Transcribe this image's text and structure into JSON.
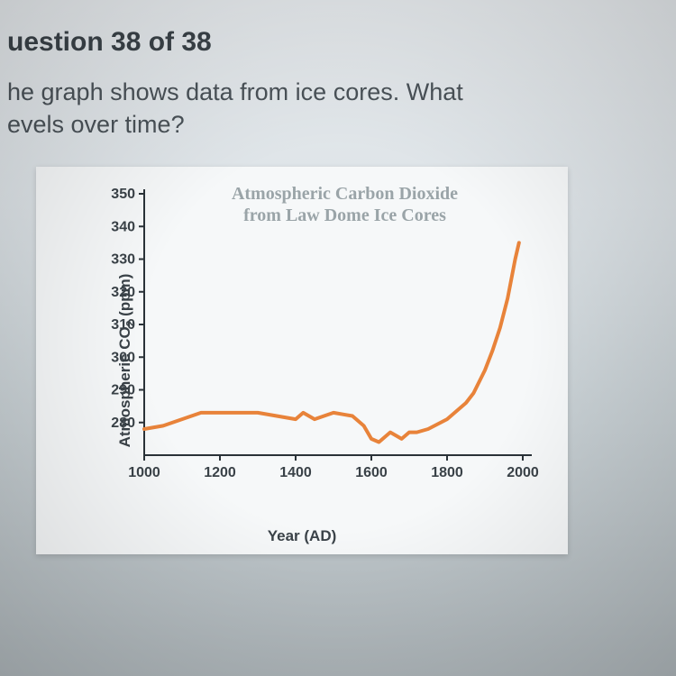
{
  "header": {
    "question_number": "uestion 38 of 38",
    "question_line1": "he graph shows data from ice cores. What",
    "question_line2": "evels over time?"
  },
  "chart": {
    "type": "line",
    "title_line1": "Atmospheric Carbon Dioxide",
    "title_line2": "from Law Dome Ice Cores",
    "ylabel": "Atmospheric CO₂ (ppm)",
    "xlabel": "Year (AD)",
    "background_color": "#f6f8f9",
    "line_color": "#e8833a",
    "line_width": 4,
    "axis_color": "#2a3238",
    "title_color": "#9aa4a8",
    "label_color": "#3a4248",
    "title_fontsize": 20,
    "label_fontsize": 17,
    "tick_fontsize": 16,
    "xlim": [
      1000,
      2000
    ],
    "ylim": [
      270,
      350
    ],
    "xticks": [
      1000,
      1200,
      1400,
      1600,
      1800,
      2000
    ],
    "yticks": [
      280,
      290,
      300,
      310,
      320,
      330,
      340,
      350
    ],
    "series": {
      "years": [
        1000,
        1050,
        1100,
        1150,
        1200,
        1250,
        1300,
        1350,
        1400,
        1420,
        1450,
        1500,
        1550,
        1580,
        1600,
        1620,
        1650,
        1680,
        1700,
        1720,
        1750,
        1800,
        1830,
        1850,
        1870,
        1900,
        1920,
        1940,
        1960,
        1980,
        1990
      ],
      "values": [
        278,
        279,
        281,
        283,
        283,
        283,
        283,
        282,
        281,
        283,
        281,
        283,
        282,
        279,
        275,
        274,
        277,
        275,
        277,
        277,
        278,
        281,
        284,
        286,
        289,
        296,
        302,
        309,
        318,
        330,
        335
      ]
    }
  }
}
